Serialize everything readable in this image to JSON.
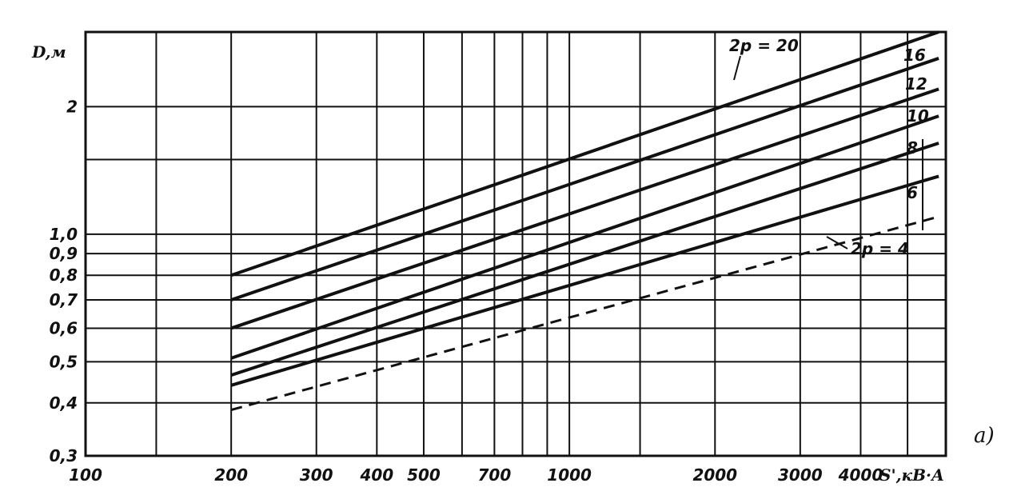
{
  "chart_data": {
    "type": "line",
    "x_scale": "log",
    "y_scale": "log",
    "grid": true,
    "xlabel": "S',кВ·А",
    "ylabel": "D,м",
    "panel_label": "а)",
    "xlim": [
      100,
      6000
    ],
    "ylim": [
      0.3,
      3.0
    ],
    "x_tick_labels": [
      {
        "value": 100,
        "label": "100"
      },
      {
        "value": 200,
        "label": "200"
      },
      {
        "value": 300,
        "label": "300"
      },
      {
        "value": 400,
        "label": "400"
      },
      {
        "value": 500,
        "label": "500"
      },
      {
        "value": 700,
        "label": "700"
      },
      {
        "value": 1000,
        "label": "1000"
      },
      {
        "value": 2000,
        "label": "2000"
      },
      {
        "value": 3000,
        "label": "3000"
      },
      {
        "value": 4000,
        "label": "4000"
      }
    ],
    "x_gridlines": [
      100,
      140,
      200,
      300,
      400,
      500,
      600,
      700,
      800,
      900,
      1000,
      1400,
      2000,
      3000,
      4000,
      5000
    ],
    "y_tick_labels": [
      {
        "value": 0.3,
        "label": "0,3"
      },
      {
        "value": 0.4,
        "label": "0,4"
      },
      {
        "value": 0.5,
        "label": "0,5"
      },
      {
        "value": 0.6,
        "label": "0,6"
      },
      {
        "value": 0.7,
        "label": "0,7"
      },
      {
        "value": 0.8,
        "label": "0,8"
      },
      {
        "value": 0.9,
        "label": "0,9"
      },
      {
        "value": 1.0,
        "label": "1,0"
      },
      {
        "value": 2,
        "label": "2"
      }
    ],
    "y_gridlines": [
      0.4,
      0.5,
      0.6,
      0.7,
      0.8,
      0.9,
      1.0,
      1.5,
      2.0
    ],
    "series": [
      {
        "name": "2p = 20",
        "label": "2p = 20",
        "x": [
          200,
          5800
        ],
        "y": [
          0.8,
          3.0
        ],
        "dashed": false
      },
      {
        "name": "16",
        "label": "16",
        "x": [
          200,
          5800
        ],
        "y": [
          0.7,
          2.6
        ],
        "dashed": false
      },
      {
        "name": "12",
        "label": "12",
        "x": [
          200,
          5800
        ],
        "y": [
          0.6,
          2.2
        ],
        "dashed": false
      },
      {
        "name": "10",
        "label": "10",
        "x": [
          200,
          5800
        ],
        "y": [
          0.51,
          1.9
        ],
        "dashed": false
      },
      {
        "name": "8",
        "label": "8",
        "x": [
          200,
          5800
        ],
        "y": [
          0.465,
          1.64
        ],
        "dashed": false
      },
      {
        "name": "6",
        "label": "6",
        "x": [
          200,
          5800
        ],
        "y": [
          0.44,
          1.37
        ],
        "dashed": false
      },
      {
        "name": "2p = 4",
        "label": "2p = 4",
        "x": [
          200,
          5800
        ],
        "y": [
          0.385,
          1.1
        ],
        "dashed": true
      }
    ]
  }
}
